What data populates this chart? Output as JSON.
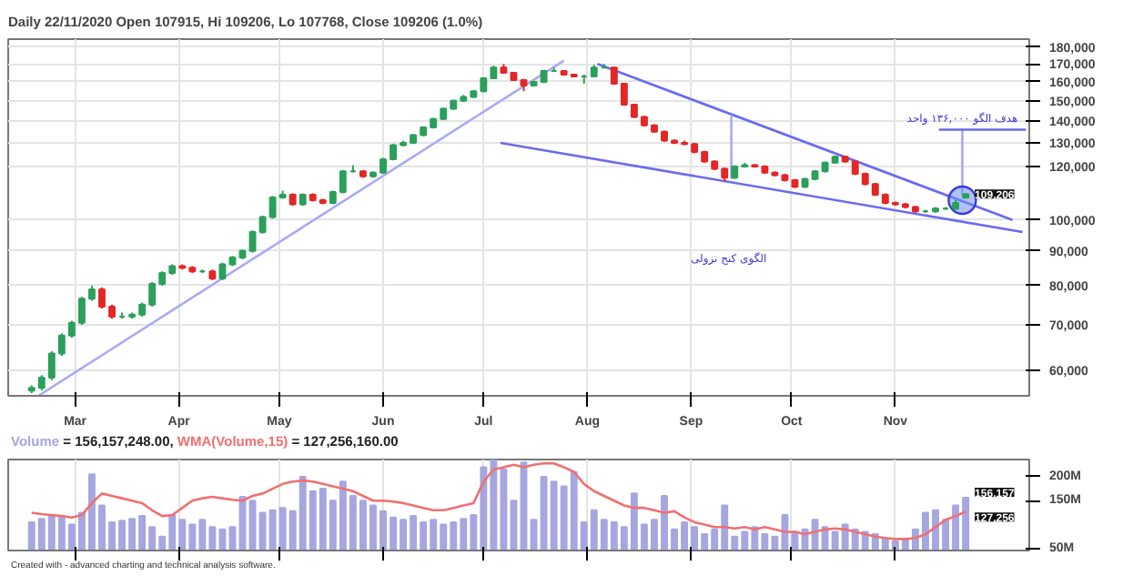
{
  "chart_data": [
    {
      "type": "candlestick",
      "title": "Daily 22/11/2020 Open 107915, Hi 109206, Lo 107768, Close 109206 (1.0%)",
      "x": [
        "2020-02-17",
        "2020-02-20",
        "2020-02-23",
        "2020-02-26",
        "2020-02-29",
        "2020-03-03",
        "2020-03-06",
        "2020-03-09",
        "2020-03-12",
        "2020-03-15",
        "2020-03-18",
        "2020-03-21",
        "2020-03-24",
        "2020-03-27",
        "2020-03-30",
        "2020-04-02",
        "2020-04-05",
        "2020-04-08",
        "2020-04-11",
        "2020-04-14",
        "2020-04-17",
        "2020-04-20",
        "2020-04-23",
        "2020-04-26",
        "2020-04-29",
        "2020-05-02",
        "2020-05-05",
        "2020-05-08",
        "2020-05-11",
        "2020-05-14",
        "2020-05-17",
        "2020-05-20",
        "2020-05-23",
        "2020-05-26",
        "2020-05-29",
        "2020-06-01",
        "2020-06-04",
        "2020-06-07",
        "2020-06-10",
        "2020-06-13",
        "2020-06-16",
        "2020-06-19",
        "2020-06-22",
        "2020-06-25",
        "2020-06-28",
        "2020-07-01",
        "2020-07-04",
        "2020-07-07",
        "2020-07-10",
        "2020-07-13",
        "2020-07-16",
        "2020-07-19",
        "2020-07-22",
        "2020-07-25",
        "2020-07-28",
        "2020-07-31",
        "2020-08-03",
        "2020-08-06",
        "2020-08-09",
        "2020-08-12",
        "2020-08-15",
        "2020-08-18",
        "2020-08-21",
        "2020-08-24",
        "2020-08-27",
        "2020-08-30",
        "2020-09-02",
        "2020-09-05",
        "2020-09-08",
        "2020-09-11",
        "2020-09-14",
        "2020-09-17",
        "2020-09-20",
        "2020-09-23",
        "2020-09-26",
        "2020-09-29",
        "2020-10-02",
        "2020-10-05",
        "2020-10-08",
        "2020-10-11",
        "2020-10-14",
        "2020-10-17",
        "2020-10-20",
        "2020-10-23",
        "2020-10-26",
        "2020-10-29",
        "2020-11-01",
        "2020-11-04",
        "2020-11-07",
        "2020-11-10",
        "2020-11-13",
        "2020-11-16",
        "2020-11-19",
        "2020-11-22"
      ],
      "ohlc": [
        [
          56000,
          57000,
          55500,
          56500
        ],
        [
          56500,
          59000,
          56000,
          58500
        ],
        [
          58500,
          64000,
          58000,
          63500
        ],
        [
          63500,
          68000,
          63000,
          67500
        ],
        [
          67500,
          71000,
          67000,
          70500
        ],
        [
          70500,
          77000,
          70000,
          76500
        ],
        [
          76500,
          80000,
          76000,
          79000
        ],
        [
          79000,
          79500,
          74000,
          74500
        ],
        [
          74500,
          75000,
          71500,
          72000
        ],
        [
          72000,
          73000,
          71500,
          72000
        ],
        [
          72000,
          73000,
          71500,
          72500
        ],
        [
          72500,
          75500,
          72000,
          75000
        ],
        [
          75000,
          81000,
          74500,
          80500
        ],
        [
          80500,
          84000,
          80000,
          83500
        ],
        [
          83500,
          86000,
          83000,
          85500
        ],
        [
          85500,
          86000,
          84500,
          85000
        ],
        [
          85000,
          85500,
          83500,
          84000
        ],
        [
          84000,
          84500,
          83500,
          84000
        ],
        [
          84000,
          84500,
          81500,
          82000
        ],
        [
          82000,
          86500,
          81500,
          86000
        ],
        [
          86000,
          88500,
          85500,
          88000
        ],
        [
          88000,
          90500,
          87500,
          90000
        ],
        [
          90000,
          96500,
          89500,
          96000
        ],
        [
          96000,
          101500,
          95500,
          101000
        ],
        [
          101000,
          108500,
          100500,
          108000
        ],
        [
          108000,
          110500,
          107500,
          109000
        ],
        [
          109000,
          109500,
          105000,
          105500
        ],
        [
          105500,
          109500,
          105000,
          109000
        ],
        [
          109000,
          109500,
          106500,
          107000
        ],
        [
          107000,
          107500,
          105500,
          106000
        ],
        [
          106000,
          110500,
          105500,
          110000
        ],
        [
          110000,
          118500,
          109500,
          118000
        ],
        [
          118000,
          120500,
          117500,
          118000
        ],
        [
          118000,
          118500,
          115500,
          116000
        ],
        [
          116000,
          118000,
          115500,
          117500
        ],
        [
          117500,
          123500,
          117000,
          123000
        ],
        [
          123000,
          129500,
          122500,
          129000
        ],
        [
          129000,
          131000,
          128500,
          130000
        ],
        [
          130000,
          134000,
          129500,
          133500
        ],
        [
          133500,
          137500,
          133000,
          137000
        ],
        [
          137000,
          141500,
          136500,
          141000
        ],
        [
          141000,
          146500,
          140500,
          146000
        ],
        [
          146000,
          150500,
          145500,
          150000
        ],
        [
          150000,
          153000,
          149500,
          152000
        ],
        [
          152000,
          155500,
          151500,
          155000
        ],
        [
          155000,
          162500,
          154500,
          162000
        ],
        [
          162000,
          169000,
          161500,
          168000
        ],
        [
          168000,
          170000,
          164500,
          165000
        ],
        [
          165000,
          165500,
          160500,
          161000
        ],
        [
          161000,
          161500,
          155000,
          158000
        ],
        [
          158000,
          160500,
          157500,
          160000
        ],
        [
          160000,
          166500,
          159500,
          166000
        ],
        [
          166000,
          168000,
          165500,
          166000
        ],
        [
          166000,
          166500,
          163500,
          164000
        ],
        [
          164000,
          164500,
          162500,
          163000
        ],
        [
          163000,
          164000,
          159000,
          163000
        ],
        [
          163000,
          169500,
          162500,
          168000
        ],
        [
          168000,
          170000,
          167500,
          168000
        ],
        [
          168000,
          168500,
          158500,
          159000
        ],
        [
          159000,
          159500,
          147500,
          148000
        ],
        [
          148000,
          148500,
          141500,
          142000
        ],
        [
          142000,
          142500,
          137500,
          138000
        ],
        [
          138000,
          138500,
          134500,
          135000
        ],
        [
          135000,
          135500,
          130500,
          131000
        ],
        [
          131000,
          131500,
          129500,
          130000
        ],
        [
          130000,
          131000,
          129000,
          129500
        ],
        [
          129500,
          130000,
          125500,
          126000
        ],
        [
          126000,
          126500,
          121500,
          122000
        ],
        [
          122000,
          122500,
          118500,
          119000
        ],
        [
          119000,
          119500,
          114000,
          115500
        ],
        [
          115500,
          120500,
          115000,
          120000
        ],
        [
          120000,
          121500,
          119500,
          120500
        ],
        [
          120500,
          121000,
          119500,
          120000
        ],
        [
          120000,
          120500,
          117000,
          117500
        ],
        [
          117500,
          118000,
          116000,
          116500
        ],
        [
          116500,
          117000,
          114000,
          114500
        ],
        [
          114500,
          115000,
          111500,
          112000
        ],
        [
          112000,
          115500,
          111500,
          115000
        ],
        [
          115000,
          118500,
          114500,
          118000
        ],
        [
          118000,
          122000,
          117500,
          121500
        ],
        [
          121500,
          124500,
          121000,
          124000
        ],
        [
          124000,
          124500,
          121500,
          122000
        ],
        [
          122000,
          122500,
          116500,
          117000
        ],
        [
          117000,
          117500,
          112500,
          113000
        ],
        [
          113000,
          113500,
          108500,
          109000
        ],
        [
          109000,
          109500,
          105500,
          106000
        ],
        [
          106000,
          106500,
          105000,
          105500
        ],
        [
          105500,
          106000,
          104000,
          104500
        ],
        [
          104500,
          105000,
          102500,
          103000
        ],
        [
          103000,
          103500,
          102500,
          103000
        ],
        [
          103000,
          104500,
          102500,
          104000
        ],
        [
          104000,
          104500,
          103500,
          104000
        ],
        [
          104000,
          107000,
          103500,
          106000
        ],
        [
          107915,
          109206,
          107768,
          109206
        ]
      ],
      "series": [
        {
          "type": "line",
          "color": "#a9a9f5",
          "x": [
            "2020-02-19",
            "2020-07-25"
          ],
          "values": [
            55000,
            172000
          ]
        },
        {
          "type": "line",
          "color": "#6b6bf0",
          "x": [
            "2020-08-04",
            "2020-12-06"
          ],
          "values": [
            170000,
            100000
          ]
        },
        {
          "type": "line",
          "color": "#6b6bf0",
          "x": [
            "2020-07-06",
            "2020-12-09"
          ],
          "values": [
            130000,
            96000
          ]
        },
        {
          "type": "line",
          "color": "#a9a9f5",
          "x": [
            "2020-09-13",
            "2020-09-13"
          ],
          "values": [
            143000,
            115000
          ]
        },
        {
          "type": "line",
          "color": "#a9a9f5",
          "x": [
            "2020-11-21",
            "2020-11-21"
          ],
          "values": [
            136000,
            109000
          ]
        },
        {
          "type": "line",
          "color": "#6b6bf0",
          "x": [
            "2020-11-14",
            "2020-12-10"
          ],
          "values": [
            136000,
            136000
          ]
        },
        {
          "type": "scatter",
          "color": "#6b8ff0",
          "marker": "circle",
          "x": [
            "2020-11-21"
          ],
          "values": [
            107000
          ]
        }
      ],
      "xlim": [
        "2020-02-10",
        "2020-12-11"
      ],
      "ylim": [
        55000,
        185000
      ],
      "log": true,
      "xticks": [
        {
          "value": "2020-03-01",
          "label": "Mar"
        },
        {
          "value": "2020-04-01",
          "label": "Apr"
        },
        {
          "value": "2020-05-01",
          "label": "May"
        },
        {
          "value": "2020-06-01",
          "label": "Jun"
        },
        {
          "value": "2020-07-01",
          "label": "Jul"
        },
        {
          "value": "2020-08-01",
          "label": "Aug"
        },
        {
          "value": "2020-09-01",
          "label": "Sep"
        },
        {
          "value": "2020-10-01",
          "label": "Oct"
        },
        {
          "value": "2020-11-01",
          "label": "Nov"
        }
      ],
      "yticks": [
        {
          "value": 60000,
          "label": "60,000"
        },
        {
          "value": 70000,
          "label": "70,000"
        },
        {
          "value": 80000,
          "label": "80,000"
        },
        {
          "value": 90000,
          "label": "90,000"
        },
        {
          "value": 100000,
          "label": "100,000"
        },
        {
          "value": 120000,
          "label": "120,000"
        },
        {
          "value": 130000,
          "label": "130,000"
        },
        {
          "value": 140000,
          "label": "140,000"
        },
        {
          "value": 150000,
          "label": "150,000"
        },
        {
          "value": 160000,
          "label": "160,000"
        },
        {
          "value": 170000,
          "label": "170,000"
        },
        {
          "value": 180000,
          "label": "180,000"
        }
      ],
      "grid": true,
      "annotations": [
        {
          "text": "هدف الگو ۱۳۶,۰۰۰ واحد",
          "x": "2020-11-21",
          "y": 136000
        },
        "الگوی کنج نزولی",
        {
          "text": "109,206",
          "x": "2020-11-22",
          "y": 109206
        }
      ]
    },
    {
      "type": "bar",
      "x": [
        "2020-02-17",
        "2020-02-20",
        "2020-02-23",
        "2020-02-26",
        "2020-02-29",
        "2020-03-03",
        "2020-03-06",
        "2020-03-09",
        "2020-03-12",
        "2020-03-15",
        "2020-03-18",
        "2020-03-21",
        "2020-03-24",
        "2020-03-27",
        "2020-03-30",
        "2020-04-02",
        "2020-04-05",
        "2020-04-08",
        "2020-04-11",
        "2020-04-14",
        "2020-04-17",
        "2020-04-20",
        "2020-04-23",
        "2020-04-26",
        "2020-04-29",
        "2020-05-02",
        "2020-05-05",
        "2020-05-08",
        "2020-05-11",
        "2020-05-14",
        "2020-05-17",
        "2020-05-20",
        "2020-05-23",
        "2020-05-26",
        "2020-05-29",
        "2020-06-01",
        "2020-06-04",
        "2020-06-07",
        "2020-06-10",
        "2020-06-13",
        "2020-06-16",
        "2020-06-19",
        "2020-06-22",
        "2020-06-25",
        "2020-06-28",
        "2020-07-01",
        "2020-07-04",
        "2020-07-07",
        "2020-07-10",
        "2020-07-13",
        "2020-07-16",
        "2020-07-19",
        "2020-07-22",
        "2020-07-25",
        "2020-07-28",
        "2020-07-31",
        "2020-08-03",
        "2020-08-06",
        "2020-08-09",
        "2020-08-12",
        "2020-08-15",
        "2020-08-18",
        "2020-08-21",
        "2020-08-24",
        "2020-08-27",
        "2020-08-30",
        "2020-09-02",
        "2020-09-05",
        "2020-09-08",
        "2020-09-11",
        "2020-09-14",
        "2020-09-17",
        "2020-09-20",
        "2020-09-23",
        "2020-09-26",
        "2020-09-29",
        "2020-10-02",
        "2020-10-05",
        "2020-10-08",
        "2020-10-11",
        "2020-10-14",
        "2020-10-17",
        "2020-10-20",
        "2020-10-23",
        "2020-10-26",
        "2020-10-29",
        "2020-11-01",
        "2020-11-04",
        "2020-11-07",
        "2020-11-10",
        "2020-11-13",
        "2020-11-16",
        "2020-11-19",
        "2020-11-22"
      ],
      "series": [
        {
          "name": "Volume",
          "color": "#a6a6e0",
          "values": [
            105,
            112,
            120,
            118,
            100,
            125,
            205,
            140,
            105,
            108,
            112,
            118,
            95,
            75,
            120,
            110,
            100,
            110,
            95,
            90,
            95,
            158,
            150,
            125,
            130,
            135,
            128,
            200,
            170,
            175,
            150,
            190,
            160,
            150,
            140,
            128,
            115,
            110,
            118,
            105,
            110,
            100,
            105,
            112,
            120,
            220,
            235,
            215,
            150,
            230,
            110,
            200,
            190,
            180,
            210,
            105,
            130,
            110,
            105,
            95,
            165,
            100,
            110,
            160,
            90,
            105,
            95,
            80,
            90,
            140,
            75,
            85,
            95,
            80,
            75,
            120,
            85,
            90,
            110,
            95,
            85,
            100,
            90,
            85,
            80,
            70,
            65,
            70,
            90,
            125,
            130,
            110,
            140,
            156.157248
          ]
        },
        {
          "name": "WMA(Volume,15)",
          "type": "line",
          "color": "#f07070",
          "values": [
            125,
            122,
            120,
            118,
            115,
            120,
            145,
            165,
            160,
            155,
            150,
            145,
            130,
            118,
            120,
            135,
            150,
            155,
            158,
            155,
            152,
            150,
            160,
            165,
            175,
            185,
            190,
            192,
            190,
            185,
            180,
            175,
            170,
            160,
            150,
            150,
            148,
            145,
            140,
            135,
            130,
            130,
            135,
            140,
            145,
            190,
            215,
            220,
            225,
            220,
            225,
            228,
            228,
            220,
            210,
            185,
            170,
            160,
            150,
            140,
            135,
            135,
            130,
            125,
            128,
            115,
            105,
            100,
            95,
            95,
            92,
            95,
            90,
            95,
            90,
            85,
            85,
            80,
            85,
            90,
            92,
            90,
            85,
            80,
            75,
            72,
            70,
            70,
            72,
            80,
            95,
            110,
            118,
            127.25616
          ]
        }
      ],
      "xlim": [
        "2020-02-10",
        "2020-12-11"
      ],
      "ylim": [
        46,
        236
      ],
      "xticks": [
        "2020-03-01",
        "2020-04-01",
        "2020-05-01",
        "2020-06-01",
        "2020-07-01",
        "2020-08-01",
        "2020-09-01",
        "2020-10-01",
        "2020-11-01"
      ],
      "tick_labels": "y",
      "yticks": [
        {
          "value": 50,
          "label": "50M"
        },
        {
          "value": 150,
          "label": "150M"
        },
        {
          "value": 200,
          "label": "200M"
        }
      ],
      "grid": "x",
      "annotations": [
        "= 156,157,248.00,",
        "= 127,256,160.00",
        {
          "text": "156,157",
          "x": "2020-11-22",
          "y": 156.157248
        },
        {
          "text": "127,256",
          "x": "2020-11-22",
          "y": 127.25616
        },
        "Created with - advanced charting and technical analysis software."
      ]
    }
  ]
}
